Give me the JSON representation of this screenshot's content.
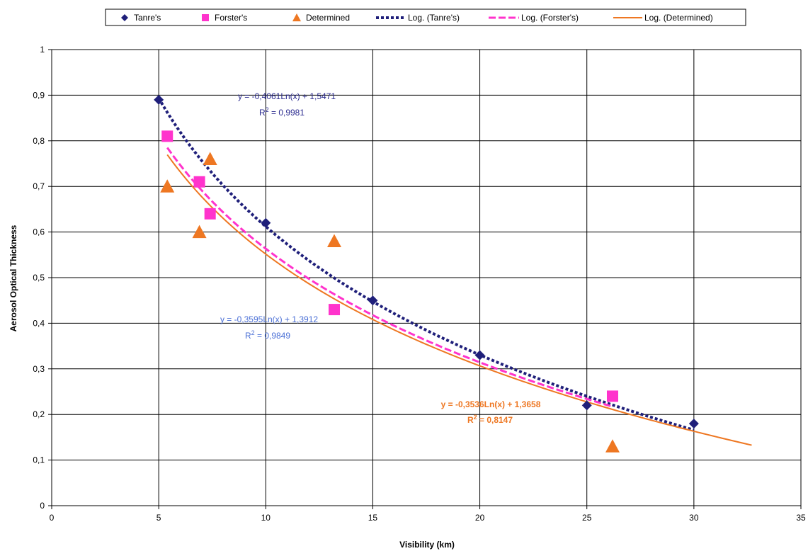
{
  "chart_data": {
    "type": "scatter",
    "xlabel": "Visibility (km)",
    "ylabel": "Aerosol Optical Thickness",
    "xlim": [
      0,
      35
    ],
    "ylim": [
      0,
      1
    ],
    "x_ticks": [
      0,
      5,
      10,
      15,
      20,
      25,
      30,
      35
    ],
    "x_tick_labels": [
      "0",
      "5",
      "10",
      "15",
      "20",
      "25",
      "30",
      "35"
    ],
    "y_ticks": [
      0,
      0.1,
      0.2,
      0.3,
      0.4,
      0.5,
      0.6,
      0.7,
      0.8,
      0.9,
      1
    ],
    "y_tick_labels": [
      "0",
      "0,1",
      "0,2",
      "0,3",
      "0,4",
      "0,5",
      "0,6",
      "0,7",
      "0,8",
      "0,9",
      "1"
    ],
    "grid": true,
    "legend_position": "top",
    "series": [
      {
        "name": "Tanre's",
        "marker": "diamond",
        "color": "#1f1f7a",
        "x": [
          5,
          10,
          15,
          20,
          25,
          30
        ],
        "y": [
          0.89,
          0.62,
          0.45,
          0.33,
          0.22,
          0.18
        ]
      },
      {
        "name": "Forster's",
        "marker": "square",
        "color": "#ff33cc",
        "x": [
          5.4,
          6.9,
          7.4,
          13.2,
          26.2
        ],
        "y": [
          0.81,
          0.71,
          0.64,
          0.43,
          0.24
        ]
      },
      {
        "name": "Determined",
        "marker": "triangle",
        "color": "#ee7722",
        "x": [
          5.4,
          7.4,
          6.9,
          13.2,
          26.2
        ],
        "y": [
          0.7,
          0.76,
          0.6,
          0.58,
          0.13
        ]
      }
    ],
    "trendlines": [
      {
        "name": "Log. (Tanre's)",
        "color": "#1f1f7a",
        "style": "dotted",
        "a": -0.4061,
        "b": 1.5471,
        "x_range": [
          5,
          30
        ]
      },
      {
        "name": "Log. (Forster's)",
        "color": "#ff33cc",
        "style": "dashed",
        "a": -0.3595,
        "b": 1.3912,
        "x_range": [
          5.4,
          26.2
        ]
      },
      {
        "name": "Log. (Determined)",
        "color": "#ee7722",
        "style": "solid",
        "a": -0.3536,
        "b": 1.3658,
        "x_range": [
          5.4,
          32.7
        ]
      }
    ],
    "annotations": [
      {
        "id": "tanre",
        "equation": "y = -0,4061Ln(x) + 1,5471",
        "r2_prefix": "R",
        "r2_exp": "2",
        "r2_value": " = 0,9981",
        "color": "#2b2b8f",
        "bold": false
      },
      {
        "id": "forster",
        "equation": "y = -0,3595Ln(x) + 1,3912",
        "r2_prefix": "R",
        "r2_exp": "2",
        "r2_value": " = 0,9849",
        "color": "#4a6fd6",
        "bold": false
      },
      {
        "id": "determined",
        "equation": "y = -0,3536Ln(x) + 1,3658",
        "r2_prefix": "R",
        "r2_exp": "2",
        "r2_value": " = 0,8147",
        "color": "#ee7722",
        "bold": true
      }
    ]
  }
}
